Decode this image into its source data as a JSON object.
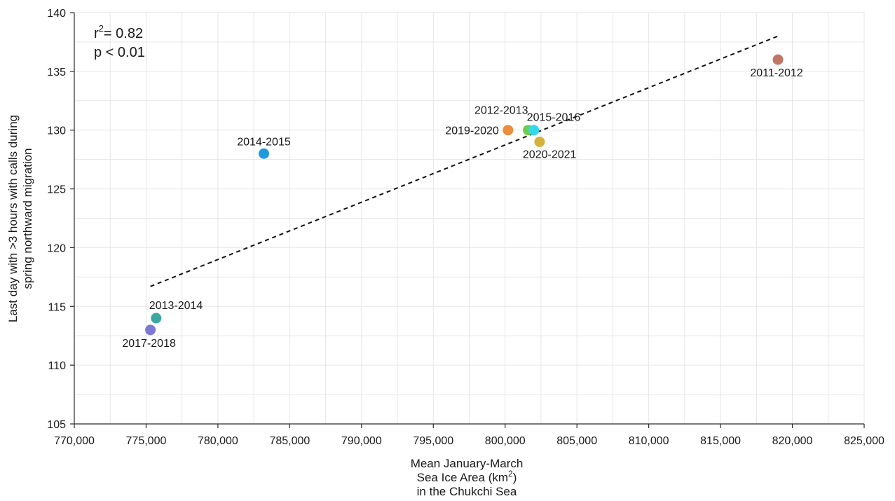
{
  "chart_data": {
    "type": "scatter",
    "title": "",
    "xlabel_lines": [
      "Mean January-March",
      "Sea Ice Area (km",
      ")",
      "in the Chukchi Sea"
    ],
    "ylabel_lines": [
      "Last day with >3 hours with calls during",
      "spring northward migration"
    ],
    "xlim": [
      770000,
      825000
    ],
    "ylim": [
      105,
      140
    ],
    "x_ticks": [
      770000,
      775000,
      780000,
      785000,
      790000,
      795000,
      800000,
      805000,
      810000,
      815000,
      820000,
      825000
    ],
    "x_tick_labels": [
      "770,000",
      "775,000",
      "780,000",
      "785,000",
      "790,000",
      "795,000",
      "800,000",
      "805,000",
      "810,000",
      "815,000",
      "820,000",
      "825,000"
    ],
    "y_ticks": [
      105,
      110,
      115,
      120,
      125,
      130,
      135,
      140
    ],
    "y_tick_labels": [
      "105",
      "110",
      "115",
      "120",
      "125",
      "130",
      "135",
      "140"
    ],
    "grid": true,
    "points": [
      {
        "label": "2011-2012",
        "x": 819000,
        "y": 136,
        "color": "#c07565",
        "label_pos": "below"
      },
      {
        "label": "2012-2013",
        "x": 801600,
        "y": 130,
        "color": "#6ccf52",
        "label_pos": "above-left"
      },
      {
        "label": "2013-2014",
        "x": 775700,
        "y": 114,
        "color": "#3aa8a0",
        "label_pos": "above-right"
      },
      {
        "label": "2014-2015",
        "x": 783200,
        "y": 128,
        "color": "#1e9be0",
        "label_pos": "above"
      },
      {
        "label": "2015-2016",
        "x": 802000,
        "y": 130,
        "color": "#35d7ec",
        "label_pos": "above-right"
      },
      {
        "label": "2017-2018",
        "x": 775300,
        "y": 113,
        "color": "#7a79d4",
        "label_pos": "below"
      },
      {
        "label": "2019-2020",
        "x": 800200,
        "y": 130,
        "color": "#eb8d3c",
        "label_pos": "left"
      },
      {
        "label": "2020-2021",
        "x": 802400,
        "y": 129,
        "color": "#d6b23c",
        "label_pos": "below-right"
      }
    ],
    "trendline": {
      "x": [
        775300,
        819000
      ],
      "y": [
        116.7,
        138.0
      ],
      "style": "dashed"
    },
    "stats": {
      "r_base": "r",
      "r_sup": "2",
      "r_value": "= 0.82",
      "p_text": "p < 0.01"
    },
    "xlabel_sup": "2"
  }
}
